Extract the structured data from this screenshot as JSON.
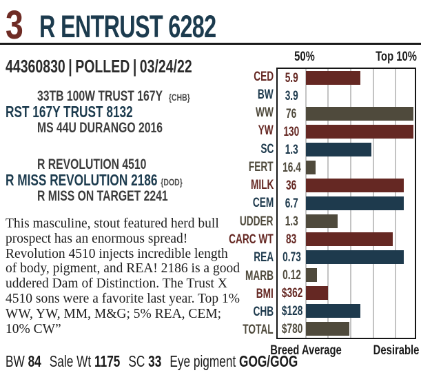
{
  "lot": {
    "number": "3",
    "name": "R ENTRUST 6282"
  },
  "registration": {
    "reg_number": "44360830",
    "horn_status": "POLLED",
    "birth_date": "03/24/22",
    "separator": "|"
  },
  "pedigree": {
    "sire_grandsire": "33TB 100W TRUST 167Y",
    "sire_grandsire_tag": "{CHB}",
    "sire": "RST 167Y TRUST 8132",
    "sire_granddam": "MS 44U DURANGO 2016",
    "dam_grandsire": "R REVOLUTION 4510",
    "dam": "R MISS REVOLUTION 2186",
    "dam_tag": "{DOD}",
    "dam_granddam": "R MISS ON TARGET 2241"
  },
  "description": "This masculine, stout featured herd bull prospect has an enormous spread! Revolution 4510 injects incredible length of body, pigment, and REA! 2186 is a good uddered Dam of Distinction. The Trust X 4510 sons were a favorite last year. Top 1% WW, YW, MM, M&G; 5% REA, CEM; 10% CW”",
  "stats": [
    {
      "label": "BW",
      "value": "84"
    },
    {
      "label": "Sale Wt",
      "value": "1175"
    },
    {
      "label": "SC",
      "value": "33"
    },
    {
      "label": "Eye pigment",
      "value": "GOG/GOG"
    }
  ],
  "chart_data": {
    "type": "bar",
    "orientation": "horizontal",
    "title": "EPD percentile chart",
    "header_labels": [
      "50%",
      "Top 10%"
    ],
    "footer_labels": [
      "Breed Average",
      "Desirable"
    ],
    "xlim_meaning": "bars run from Breed Average (left) toward Desirable (right)",
    "grid": true,
    "colors": {
      "red": "#652823",
      "blue": "#1E3A4D",
      "olive": "#4F4A3C"
    },
    "rows": [
      {
        "label": "CED",
        "value": "5.9",
        "percent_of_scale": 50,
        "color": "red"
      },
      {
        "label": "BW",
        "value": "3.9",
        "percent_of_scale": 0,
        "color": "blue"
      },
      {
        "label": "WW",
        "value": "76",
        "percent_of_scale": 99,
        "color": "olive"
      },
      {
        "label": "YW",
        "value": "130",
        "percent_of_scale": 99,
        "color": "red"
      },
      {
        "label": "SC",
        "value": "1.3",
        "percent_of_scale": 60,
        "color": "blue"
      },
      {
        "label": "FERT",
        "value": "16.4",
        "percent_of_scale": 9,
        "color": "olive"
      },
      {
        "label": "MILK",
        "value": "36",
        "percent_of_scale": 90,
        "color": "red"
      },
      {
        "label": "CEM",
        "value": "6.7",
        "percent_of_scale": 90,
        "color": "blue"
      },
      {
        "label": "UDDER",
        "value": "1.3",
        "percent_of_scale": 29,
        "color": "olive"
      },
      {
        "label": "CARC WT",
        "value": "83",
        "percent_of_scale": 80,
        "color": "red"
      },
      {
        "label": "REA",
        "value": "0.73",
        "percent_of_scale": 90,
        "color": "blue"
      },
      {
        "label": "MARB",
        "value": "0.12",
        "percent_of_scale": 10,
        "color": "olive"
      },
      {
        "label": "BMI",
        "value": "$362",
        "percent_of_scale": 20,
        "color": "red"
      },
      {
        "label": "CHB",
        "value": "$128",
        "percent_of_scale": 50,
        "color": "blue"
      },
      {
        "label": "TOTAL",
        "value": "$780",
        "percent_of_scale": 40,
        "color": "olive"
      }
    ]
  }
}
